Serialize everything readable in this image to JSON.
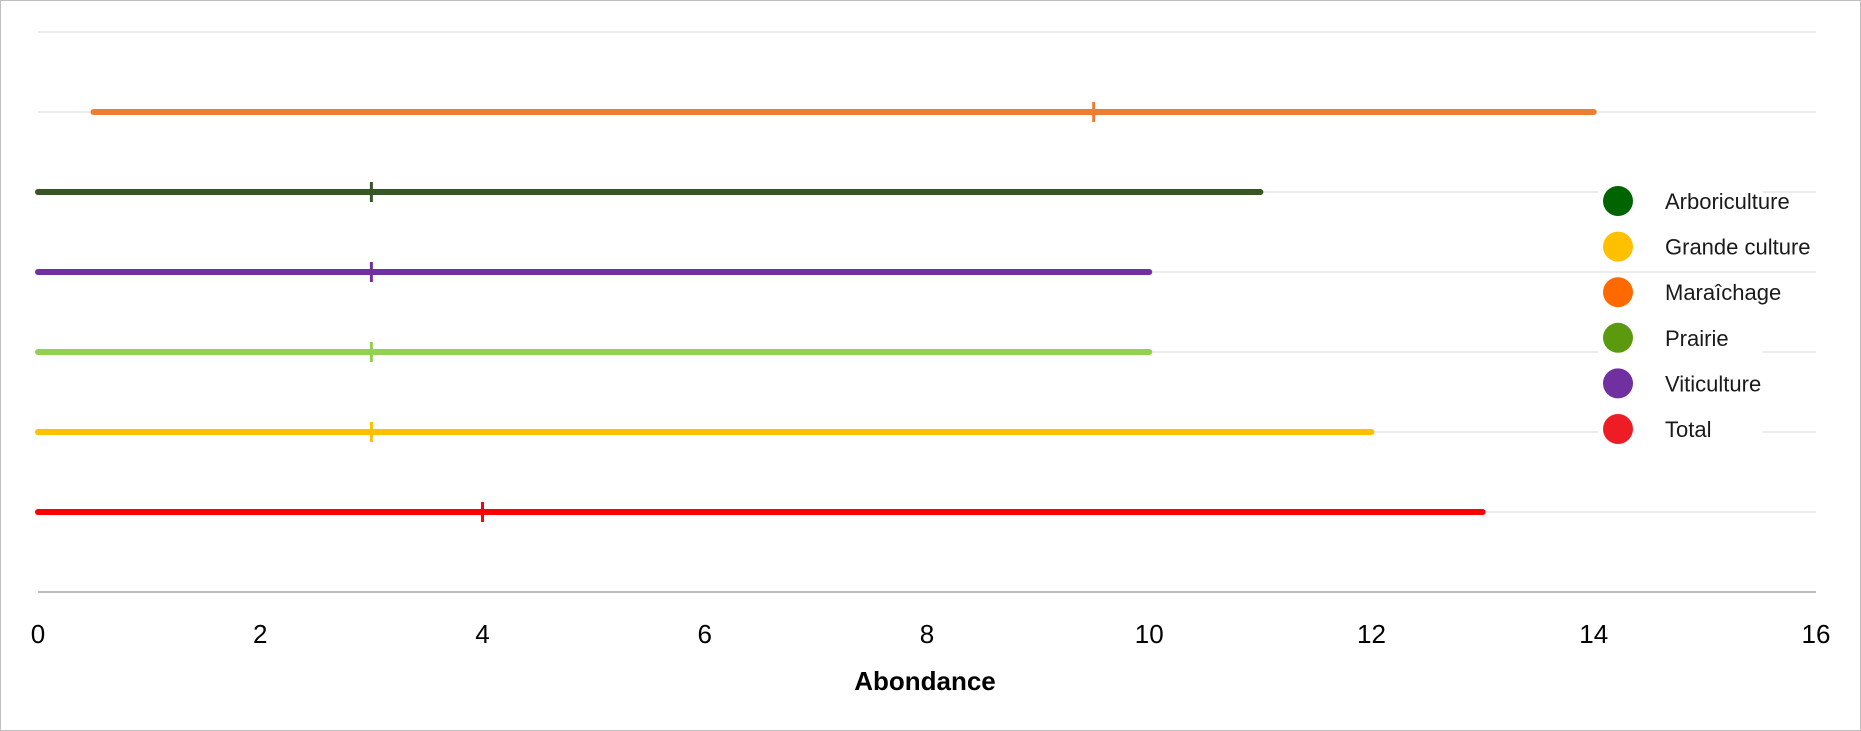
{
  "chart_data": {
    "type": "range",
    "title": "",
    "xlabel": "Abondance",
    "ylabel": "",
    "xlim": [
      0,
      16
    ],
    "x_ticks": [
      "0",
      "2",
      "4",
      "6",
      "8",
      "10",
      "12",
      "14",
      "16"
    ],
    "grid": "horizontal",
    "legend_position": "right",
    "rows": [
      {
        "color": "#ed7d31",
        "min": 0.5,
        "max": 14,
        "marker": 9.5
      },
      {
        "color": "#375623",
        "min": 0,
        "max": 11,
        "marker": 3
      },
      {
        "color": "#7030a0",
        "min": 0,
        "max": 10,
        "marker": 3
      },
      {
        "color": "#92d050",
        "min": 0,
        "max": 10,
        "marker": 3
      },
      {
        "color": "#ffc000",
        "min": 0,
        "max": 12,
        "marker": 3
      },
      {
        "color": "#ff0000",
        "min": 0,
        "max": 13,
        "marker": 4
      }
    ],
    "legend": [
      {
        "name": "Arboriculture",
        "color": "#006400"
      },
      {
        "name": "Grande culture",
        "color": "#ffc000"
      },
      {
        "name": "Maraîchage",
        "color": "#ff6a00"
      },
      {
        "name": "Prairie",
        "color": "#5b9a0f"
      },
      {
        "name": "Viticulture",
        "color": "#7030a0"
      },
      {
        "name": "Total",
        "color": "#ee1c25"
      }
    ]
  }
}
